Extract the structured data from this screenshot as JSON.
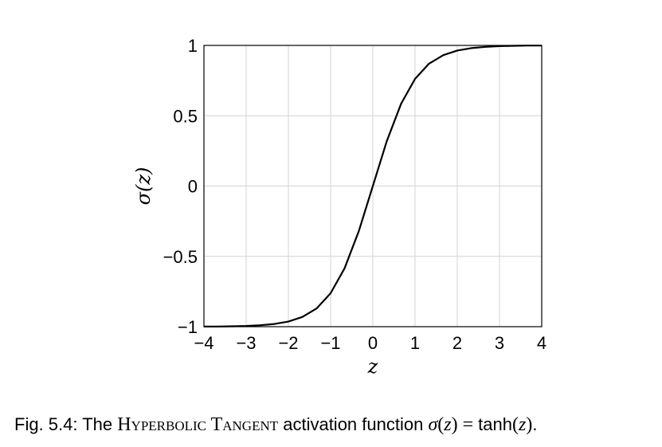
{
  "chart_data": {
    "type": "line",
    "title": "",
    "xlabel": "z",
    "ylabel": "σ(z)",
    "xlim": [
      -4,
      4
    ],
    "ylim": [
      -1,
      1
    ],
    "grid": true,
    "x_ticks": [
      -4,
      -3,
      -2,
      -1,
      0,
      1,
      2,
      3,
      4
    ],
    "x_tick_labels": [
      "−4",
      "−3",
      "−2",
      "−1",
      "0",
      "1",
      "2",
      "3",
      "4"
    ],
    "y_ticks": [
      -1,
      -0.5,
      0,
      0.5,
      1
    ],
    "y_tick_labels": [
      "−1",
      "−0.5",
      "0",
      "0.5",
      "1"
    ],
    "series": [
      {
        "x": [
          -4,
          -3.67,
          -3.33,
          -3,
          -2.67,
          -2.33,
          -2,
          -1.67,
          -1.33,
          -1,
          -0.67,
          -0.33,
          0,
          0.33,
          0.67,
          1,
          1.33,
          1.67,
          2,
          2.33,
          2.67,
          3,
          3.33,
          3.67,
          4
        ],
        "y": [
          -0.999,
          -0.999,
          -0.997,
          -0.995,
          -0.99,
          -0.981,
          -0.964,
          -0.931,
          -0.87,
          -0.762,
          -0.585,
          -0.319,
          0,
          0.319,
          0.585,
          0.762,
          0.87,
          0.931,
          0.964,
          0.981,
          0.99,
          0.995,
          0.997,
          0.999,
          0.999
        ],
        "color": "#000000"
      }
    ]
  },
  "caption": {
    "prefix": "Fig.  5.4: The ",
    "name": "Hyperbolic Tangent",
    "middle": " activation function ",
    "math_lhs": "σ",
    "math_var": "z",
    "math_rhs": "tanh",
    "suffix": "."
  }
}
